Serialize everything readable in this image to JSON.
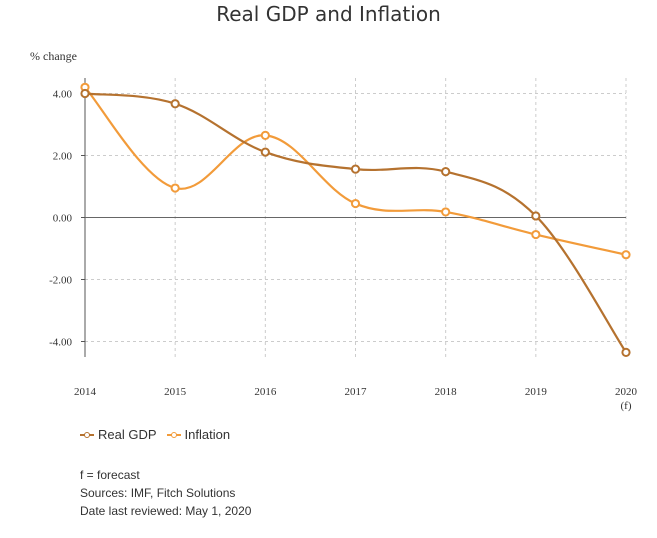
{
  "chart_data": {
    "type": "line",
    "title": "Real GDP and Inflation",
    "ylabel": "% change",
    "xlabel": "",
    "x": [
      "2014",
      "2015",
      "2016",
      "2017",
      "2018",
      "2019",
      "2020"
    ],
    "x_sublabels": [
      "",
      "",
      "",
      "",
      "",
      "",
      "(f)"
    ],
    "ylim": [
      -4.5,
      4.5
    ],
    "yticks": [
      "4.00",
      "2.00",
      "0.00",
      "-2.00",
      "-4.00"
    ],
    "ytick_values": [
      4,
      2,
      0,
      -2,
      -4
    ],
    "grid": true,
    "legend_position": "bottom-left",
    "series": [
      {
        "name": "Real GDP",
        "color": "#b5722f",
        "values": [
          4.0,
          3.67,
          2.11,
          1.56,
          1.48,
          0.05,
          -4.35
        ]
      },
      {
        "name": "Inflation",
        "color": "#f29b3a",
        "values": [
          4.2,
          0.95,
          2.65,
          0.45,
          0.18,
          -0.55,
          -1.2
        ]
      }
    ]
  },
  "notes": {
    "forecast": "f = forecast",
    "sources": "Sources: IMF, Fitch Solutions",
    "reviewed": "Date last reviewed: May 1, 2020"
  }
}
